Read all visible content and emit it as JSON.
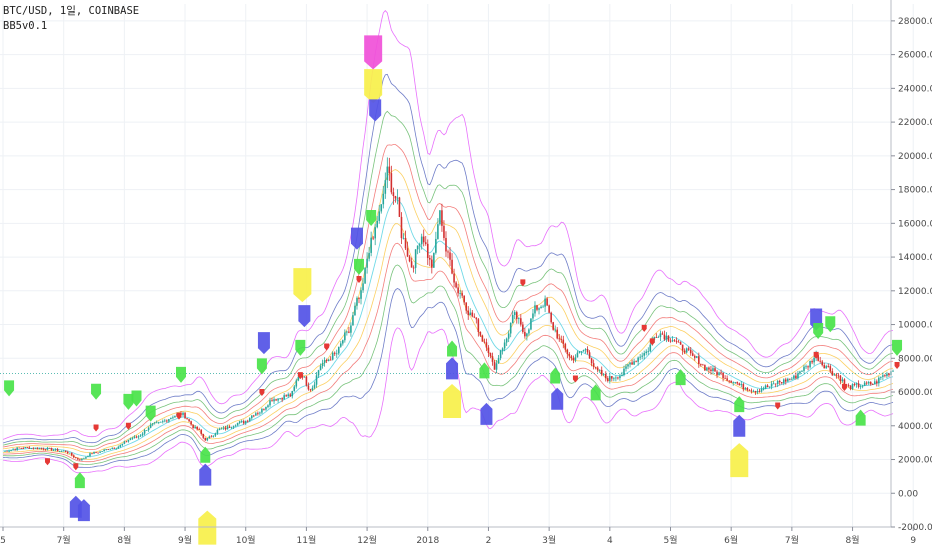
{
  "header": {
    "symbol_line": "BTC/USD, 1일, COINBASE",
    "indicator_line": "BB5v0.1"
  },
  "colors": {
    "bull": "#26a69a",
    "bear": "#d32f2f",
    "bands": [
      "#e040fb",
      "#3f51b5",
      "#4caf50",
      "#ef5350",
      "#fbc02d"
    ],
    "basis": "#4dd0e1",
    "reference_line": "#26a69a",
    "marker_green": "#49e349",
    "marker_blue": "#5252e6",
    "marker_yellow": "#f7f04a",
    "marker_magenta": "#f050d8",
    "marker_red": "#e53935"
  },
  "chart_data": {
    "type": "line",
    "y_axis": {
      "range": [
        -2000,
        29000
      ],
      "ticks": [
        28000,
        26000,
        24000,
        22000,
        20000,
        18000,
        16000,
        14000,
        12000,
        10000,
        8000,
        6000,
        4000,
        2000,
        0,
        -2000
      ],
      "tick_labels": [
        "28000.00",
        "26000.00",
        "24000.00",
        "22000.00",
        "20000.00",
        "18000.00",
        "16000.00",
        "14000.00",
        "12000.00",
        "10000.00",
        "8000.00",
        "6000.00",
        "4000.00",
        "2000.00",
        "0.00",
        "-2000.00"
      ]
    },
    "x_axis": {
      "range": [
        0,
        440
      ],
      "ticks": [
        {
          "x": 0,
          "label": "5"
        },
        {
          "x": 30,
          "label": "7월"
        },
        {
          "x": 60,
          "label": "8월"
        },
        {
          "x": 90,
          "label": "9월"
        },
        {
          "x": 120,
          "label": "10월"
        },
        {
          "x": 150,
          "label": "11월"
        },
        {
          "x": 180,
          "label": "12월"
        },
        {
          "x": 210,
          "label": "2018"
        },
        {
          "x": 240,
          "label": "2"
        },
        {
          "x": 270,
          "label": "3월"
        },
        {
          "x": 300,
          "label": "4"
        },
        {
          "x": 330,
          "label": "5월"
        },
        {
          "x": 360,
          "label": "6월"
        },
        {
          "x": 390,
          "label": "7월"
        },
        {
          "x": 420,
          "label": "8월"
        },
        {
          "x": 450,
          "label": "9"
        }
      ]
    },
    "reference_price": 7100,
    "price_anchors": [
      [
        0,
        2500
      ],
      [
        10,
        2700
      ],
      [
        20,
        2650
      ],
      [
        30,
        2500
      ],
      [
        38,
        2000
      ],
      [
        45,
        2400
      ],
      [
        55,
        2700
      ],
      [
        65,
        3300
      ],
      [
        75,
        4100
      ],
      [
        88,
        4700
      ],
      [
        96,
        3800
      ],
      [
        100,
        3200
      ],
      [
        108,
        3800
      ],
      [
        118,
        4200
      ],
      [
        126,
        4800
      ],
      [
        134,
        5600
      ],
      [
        142,
        5800
      ],
      [
        147,
        7100
      ],
      [
        152,
        6200
      ],
      [
        158,
        7700
      ],
      [
        164,
        8200
      ],
      [
        170,
        9400
      ],
      [
        176,
        11500
      ],
      [
        182,
        14800
      ],
      [
        186,
        16500
      ],
      [
        190,
        19000
      ],
      [
        194,
        17500
      ],
      [
        198,
        15000
      ],
      [
        202,
        13500
      ],
      [
        207,
        15300
      ],
      [
        212,
        13500
      ],
      [
        216,
        16500
      ],
      [
        220,
        14000
      ],
      [
        225,
        12000
      ],
      [
        232,
        10500
      ],
      [
        238,
        9000
      ],
      [
        243,
        7500
      ],
      [
        247,
        8700
      ],
      [
        253,
        10500
      ],
      [
        258,
        9500
      ],
      [
        264,
        11000
      ],
      [
        268,
        11300
      ],
      [
        272,
        9800
      ],
      [
        276,
        8900
      ],
      [
        281,
        8000
      ],
      [
        288,
        8500
      ],
      [
        294,
        7200
      ],
      [
        299,
        6800
      ],
      [
        305,
        7000
      ],
      [
        311,
        7800
      ],
      [
        317,
        8300
      ],
      [
        324,
        9500
      ],
      [
        330,
        9200
      ],
      [
        336,
        8600
      ],
      [
        342,
        8000
      ],
      [
        348,
        7400
      ],
      [
        354,
        7100
      ],
      [
        360,
        6700
      ],
      [
        366,
        6300
      ],
      [
        372,
        6100
      ],
      [
        378,
        6300
      ],
      [
        384,
        6600
      ],
      [
        390,
        6800
      ],
      [
        396,
        7400
      ],
      [
        402,
        8100
      ],
      [
        406,
        7600
      ],
      [
        412,
        7000
      ],
      [
        418,
        6300
      ],
      [
        424,
        6400
      ],
      [
        430,
        6500
      ],
      [
        436,
        7000
      ],
      [
        440,
        7300
      ]
    ],
    "band_widths": [
      0.65,
      0.45,
      0.33,
      0.22,
      0.12
    ],
    "markers": [
      {
        "x": 3,
        "kind": "green-down",
        "y": 6100
      },
      {
        "x": 73,
        "kind": "green-down",
        "y": 4600
      },
      {
        "x": 38,
        "kind": "green-up",
        "y": 900
      },
      {
        "x": 40,
        "kind": "blue-up",
        "y": -700
      },
      {
        "x": 36,
        "kind": "blue-up",
        "y": -500
      },
      {
        "x": 46,
        "kind": "green-down",
        "y": 5900
      },
      {
        "x": 62,
        "kind": "green-down",
        "y": 5300
      },
      {
        "x": 66,
        "kind": "green-down",
        "y": 5500
      },
      {
        "x": 88,
        "kind": "green-down",
        "y": 6900
      },
      {
        "x": 100,
        "kind": "green-up",
        "y": 2400
      },
      {
        "x": 100,
        "kind": "blue-up",
        "y": 1400
      },
      {
        "x": 101,
        "kind": "yellow-up",
        "y": -1500
      },
      {
        "x": 128,
        "kind": "green-down",
        "y": 7400
      },
      {
        "x": 129,
        "kind": "blue-down",
        "y": 8600
      },
      {
        "x": 147,
        "kind": "green-down",
        "y": 8500
      },
      {
        "x": 148,
        "kind": "yellow-down",
        "y": 11800
      },
      {
        "x": 149,
        "kind": "blue-down",
        "y": 10200
      },
      {
        "x": 175,
        "kind": "blue-down",
        "y": 14800
      },
      {
        "x": 176,
        "kind": "green-down",
        "y": 13300
      },
      {
        "x": 182,
        "kind": "green-down",
        "y": 16200
      },
      {
        "x": 183,
        "kind": "magenta-down",
        "y": 25600
      },
      {
        "x": 183,
        "kind": "yellow-down",
        "y": 23600
      },
      {
        "x": 184,
        "kind": "blue-down",
        "y": 22400
      },
      {
        "x": 222,
        "kind": "green-up",
        "y": 8700
      },
      {
        "x": 222,
        "kind": "blue-up",
        "y": 7700
      },
      {
        "x": 222,
        "kind": "yellow-up",
        "y": 6000
      },
      {
        "x": 238,
        "kind": "green-up",
        "y": 7400
      },
      {
        "x": 239,
        "kind": "blue-up",
        "y": 5000
      },
      {
        "x": 273,
        "kind": "green-up",
        "y": 7100
      },
      {
        "x": 274,
        "kind": "blue-up",
        "y": 5900
      },
      {
        "x": 293,
        "kind": "green-up",
        "y": 6100
      },
      {
        "x": 335,
        "kind": "green-up",
        "y": 7000
      },
      {
        "x": 364,
        "kind": "green-up",
        "y": 5400
      },
      {
        "x": 364,
        "kind": "blue-up",
        "y": 4300
      },
      {
        "x": 364,
        "kind": "yellow-up",
        "y": 2500
      },
      {
        "x": 402,
        "kind": "blue-down",
        "y": 10000
      },
      {
        "x": 403,
        "kind": "green-down",
        "y": 9500
      },
      {
        "x": 409,
        "kind": "green-down",
        "y": 9900
      },
      {
        "x": 424,
        "kind": "green-up",
        "y": 4600
      },
      {
        "x": 442,
        "kind": "green-down",
        "y": 8500
      }
    ],
    "red_dots": [
      {
        "x": 22,
        "y": 1900
      },
      {
        "x": 36,
        "y": 1600
      },
      {
        "x": 46,
        "y": 3900
      },
      {
        "x": 62,
        "y": 4000
      },
      {
        "x": 87,
        "y": 4600
      },
      {
        "x": 128,
        "y": 6000
      },
      {
        "x": 147,
        "y": 7000
      },
      {
        "x": 160,
        "y": 8700
      },
      {
        "x": 176,
        "y": 12700
      },
      {
        "x": 257,
        "y": 12500
      },
      {
        "x": 283,
        "y": 6800
      },
      {
        "x": 317,
        "y": 9800
      },
      {
        "x": 321,
        "y": 9000
      },
      {
        "x": 383,
        "y": 5200
      },
      {
        "x": 402,
        "y": 8200
      },
      {
        "x": 416,
        "y": 6300
      },
      {
        "x": 442,
        "y": 7600
      }
    ]
  }
}
